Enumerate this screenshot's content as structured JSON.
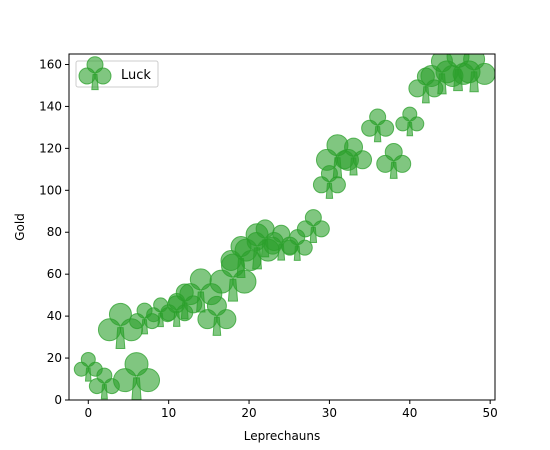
{
  "chart_data": {
    "type": "scatter",
    "title": "",
    "xlabel": "Leprechauns",
    "ylabel": "Gold",
    "xlim": [
      -2.4,
      50.6
    ],
    "ylim": [
      0,
      165
    ],
    "xticks": [
      0,
      10,
      20,
      30,
      40,
      50
    ],
    "yticks": [
      0,
      20,
      40,
      60,
      80,
      100,
      120,
      140,
      160
    ],
    "grid": false,
    "legend_position": "upper-left",
    "series": [
      {
        "name": "Luck",
        "color": "#2ca02c",
        "marker": "club-icon",
        "points": [
          {
            "x": 0,
            "y": 15,
            "s": 0.7
          },
          {
            "x": 2,
            "y": 7,
            "s": 0.75
          },
          {
            "x": 4,
            "y": 34,
            "s": 1.1
          },
          {
            "x": 6,
            "y": 10,
            "s": 1.15
          },
          {
            "x": 7,
            "y": 38,
            "s": 0.75
          },
          {
            "x": 9,
            "y": 41,
            "s": 0.7
          },
          {
            "x": 11,
            "y": 42,
            "s": 0.8
          },
          {
            "x": 12,
            "y": 46,
            "s": 0.85
          },
          {
            "x": 14,
            "y": 51,
            "s": 1.05
          },
          {
            "x": 16,
            "y": 39,
            "s": 0.95
          },
          {
            "x": 18,
            "y": 57,
            "s": 1.15
          },
          {
            "x": 19,
            "y": 67,
            "s": 1.0
          },
          {
            "x": 21,
            "y": 72,
            "s": 1.1
          },
          {
            "x": 22,
            "y": 76,
            "s": 0.9
          },
          {
            "x": 24,
            "y": 74,
            "s": 0.85
          },
          {
            "x": 26,
            "y": 73,
            "s": 0.75
          },
          {
            "x": 28,
            "y": 82,
            "s": 0.8
          },
          {
            "x": 30,
            "y": 103,
            "s": 0.8
          },
          {
            "x": 31,
            "y": 115,
            "s": 1.05
          },
          {
            "x": 33,
            "y": 115,
            "s": 0.9
          },
          {
            "x": 36,
            "y": 130,
            "s": 0.8
          },
          {
            "x": 38,
            "y": 113,
            "s": 0.85
          },
          {
            "x": 40,
            "y": 132,
            "s": 0.7
          },
          {
            "x": 42,
            "y": 149,
            "s": 0.85
          },
          {
            "x": 44,
            "y": 155,
            "s": 1.05
          },
          {
            "x": 46,
            "y": 157,
            "s": 1.1
          },
          {
            "x": 48,
            "y": 156,
            "s": 1.05
          }
        ]
      }
    ]
  }
}
